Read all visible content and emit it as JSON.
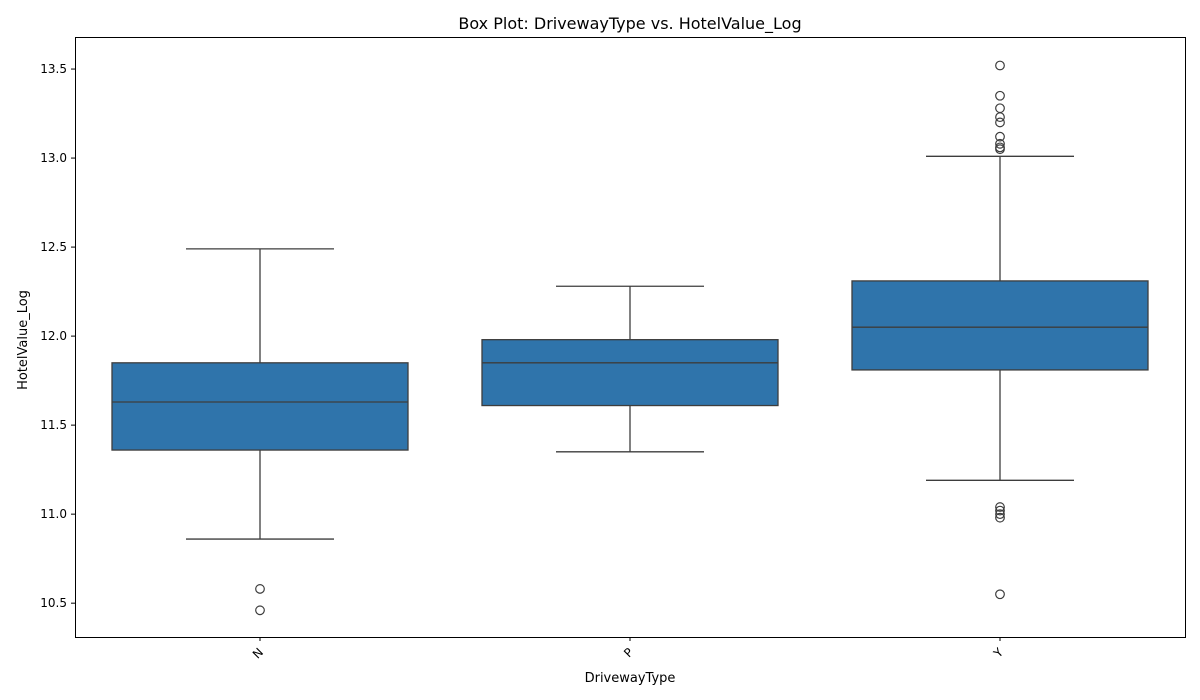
{
  "chart_data": {
    "type": "box",
    "title": "Box Plot: DrivewayType vs. HotelValue_Log",
    "xlabel": "DrivewayType",
    "ylabel": "HotelValue_Log",
    "ylim": [
      10.31,
      13.68
    ],
    "yticks": [
      "10.5",
      "11.0",
      "11.5",
      "12.0",
      "12.5",
      "13.0",
      "13.5"
    ],
    "grid": false,
    "box_color": "#2f74ab",
    "line_color": "#3d3d3d",
    "categories": [
      "N",
      "P",
      "Y"
    ],
    "boxes": [
      {
        "category": "N",
        "q1": 11.36,
        "median": 11.63,
        "q3": 11.85,
        "whisker_low": 10.86,
        "whisker_high": 12.49,
        "outliers": [
          10.58,
          10.46
        ]
      },
      {
        "category": "P",
        "q1": 11.61,
        "median": 11.85,
        "q3": 11.98,
        "whisker_low": 11.35,
        "whisker_high": 12.28,
        "outliers": []
      },
      {
        "category": "Y",
        "q1": 11.81,
        "median": 12.05,
        "q3": 12.31,
        "whisker_low": 11.19,
        "whisker_high": 13.01,
        "outliers": [
          13.52,
          13.35,
          13.28,
          13.23,
          13.2,
          13.12,
          13.08,
          13.06,
          13.05,
          11.04,
          11.02,
          11.0,
          10.98,
          10.55
        ]
      }
    ]
  }
}
